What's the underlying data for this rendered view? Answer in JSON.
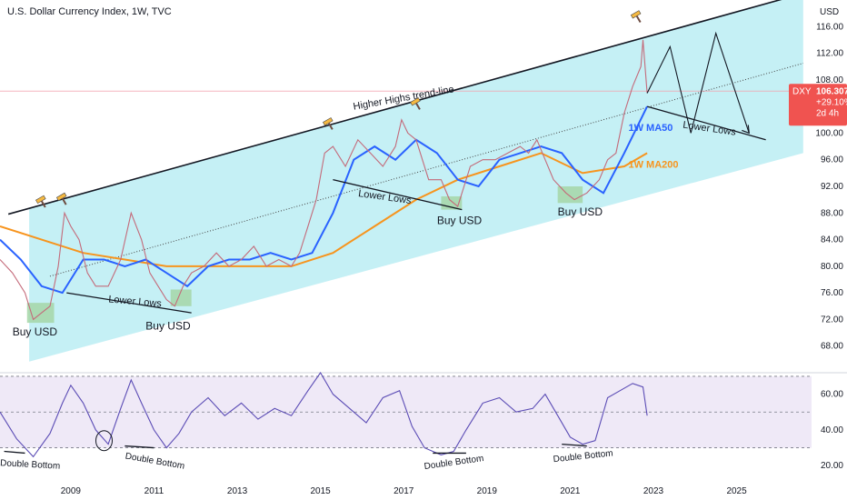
{
  "header": {
    "title": "U.S. Dollar Currency Index, 1W, TVC",
    "currency": "USD"
  },
  "badge": {
    "symbol": "DXY",
    "price": "106.307",
    "change": "+29.10%",
    "countdown": "2d 4h"
  },
  "colors": {
    "price": "#c46a7a",
    "ma50": "#2962ff",
    "ma200": "#f7941d",
    "channel": "#b2ebf2",
    "rsi_line": "#5b4cb5",
    "rsi_band": "#ede7f6",
    "buy_zone": "#a5d6a7",
    "badge": "#f05350",
    "text": "#131722"
  },
  "chart_data": [
    {
      "type": "line",
      "name": "price_panel",
      "y_range": [
        64,
        120
      ],
      "x_range": [
        2007.3,
        2026.8
      ],
      "yticks": [
        68,
        72,
        76,
        80,
        84,
        88,
        92,
        96,
        100,
        104,
        108,
        112,
        116
      ],
      "yticks_labels": [
        "68.00",
        "72.00",
        "76.00",
        "80.00",
        "84.00",
        "88.00",
        "92.00",
        "96.00",
        "100.00",
        "104.00",
        "108.00",
        "112.00",
        "116.00"
      ],
      "xticks": [
        2009,
        2011,
        2013,
        2015,
        2017,
        2019,
        2021,
        2023,
        2025
      ],
      "xticks_labels": [
        "2009",
        "2011",
        "2013",
        "2015",
        "2017",
        "2019",
        "2021",
        "2023",
        "2025"
      ],
      "series": [
        {
          "key": "price",
          "x": [
            2007.3,
            2007.6,
            2007.9,
            2008.1,
            2008.3,
            2008.5,
            2008.7,
            2008.85,
            2009.0,
            2009.2,
            2009.4,
            2009.6,
            2009.9,
            2010.2,
            2010.45,
            2010.7,
            2010.9,
            2011.1,
            2011.3,
            2011.5,
            2011.7,
            2011.9,
            2012.2,
            2012.5,
            2012.8,
            2013.1,
            2013.4,
            2013.7,
            2014.0,
            2014.3,
            2014.5,
            2014.7,
            2014.9,
            2015.1,
            2015.3,
            2015.6,
            2015.9,
            2016.2,
            2016.5,
            2016.8,
            2016.95,
            2017.1,
            2017.3,
            2017.6,
            2017.9,
            2018.1,
            2018.3,
            2018.6,
            2018.9,
            2019.2,
            2019.5,
            2019.8,
            2020.0,
            2020.2,
            2020.4,
            2020.6,
            2020.9,
            2021.1,
            2021.4,
            2021.7,
            2021.9,
            2022.1,
            2022.3,
            2022.5,
            2022.7,
            2022.75,
            2022.85
          ],
          "y": [
            81,
            79,
            76,
            72,
            73,
            74,
            80,
            88,
            86,
            84,
            79,
            77,
            77,
            81,
            88,
            84,
            79,
            77,
            75,
            74,
            77,
            79,
            80,
            82,
            80,
            81,
            83,
            80,
            81,
            80,
            82,
            86,
            90,
            97,
            98,
            95,
            99,
            97,
            95,
            98,
            102,
            100,
            99,
            93,
            93,
            90,
            89,
            95,
            96,
            96,
            97,
            98,
            97,
            99,
            96,
            93,
            91,
            90,
            91,
            93,
            96,
            97,
            103,
            107,
            110,
            114,
            106
          ]
        },
        {
          "key": "ma50",
          "x": [
            2007.3,
            2007.8,
            2008.3,
            2008.8,
            2009.3,
            2009.8,
            2010.3,
            2010.8,
            2011.3,
            2011.8,
            2012.3,
            2012.8,
            2013.3,
            2013.8,
            2014.3,
            2014.8,
            2015.3,
            2015.8,
            2016.3,
            2016.8,
            2017.3,
            2017.8,
            2018.3,
            2018.8,
            2019.3,
            2019.8,
            2020.3,
            2020.8,
            2021.3,
            2021.8,
            2022.3,
            2022.85
          ],
          "y": [
            84,
            81,
            77,
            76,
            81,
            81,
            80,
            81,
            79,
            77,
            80,
            81,
            81,
            82,
            81,
            82,
            88,
            96,
            98,
            96,
            99,
            97,
            93,
            92,
            96,
            97,
            98,
            97,
            93,
            91,
            97,
            104
          ]
        },
        {
          "key": "ma200",
          "x": [
            2007.3,
            2008.3,
            2009.3,
            2010.3,
            2011.3,
            2012.3,
            2013.3,
            2014.3,
            2015.3,
            2016.3,
            2017.3,
            2018.3,
            2019.3,
            2020.3,
            2021.3,
            2022.3,
            2022.85
          ],
          "y": [
            86,
            84,
            82,
            81,
            80,
            80,
            80,
            80,
            82,
            86,
            90,
            93,
            95,
            97,
            94,
            95,
            97
          ]
        },
        {
          "key": "projection",
          "x": [
            2022.85,
            2023.4,
            2023.9,
            2024.5,
            2025.3
          ],
          "y": [
            106,
            113,
            100,
            115,
            100
          ]
        }
      ],
      "annotations": {
        "higher_highs_label": "Higher Highs trend-line",
        "lower_lows": [
          "Lower Lows",
          "Lower Lows",
          "Lower Lows"
        ],
        "buy_usd": [
          "Buy USD",
          "Buy USD",
          "Buy USD",
          "Buy USD"
        ],
        "ma50_label": "1W MA50",
        "ma200_label": "1W MA200"
      }
    },
    {
      "type": "line",
      "name": "rsi_panel",
      "y_range": [
        14,
        72
      ],
      "yticks": [
        20,
        40,
        60
      ],
      "yticks_labels": [
        "20.00",
        "40.00",
        "60.00"
      ],
      "band": [
        30,
        70
      ],
      "midline": 50,
      "series": [
        {
          "key": "rsi",
          "x": [
            2007.3,
            2007.7,
            2008.1,
            2008.5,
            2008.8,
            2009.0,
            2009.3,
            2009.6,
            2009.9,
            2010.2,
            2010.45,
            2010.7,
            2011.0,
            2011.3,
            2011.6,
            2011.9,
            2012.3,
            2012.7,
            2013.1,
            2013.5,
            2013.9,
            2014.3,
            2014.7,
            2015.0,
            2015.3,
            2015.7,
            2016.1,
            2016.5,
            2016.9,
            2017.2,
            2017.5,
            2017.9,
            2018.2,
            2018.5,
            2018.9,
            2019.3,
            2019.7,
            2020.1,
            2020.4,
            2020.7,
            2021.0,
            2021.3,
            2021.6,
            2021.9,
            2022.2,
            2022.5,
            2022.75,
            2022.85
          ],
          "y": [
            50,
            35,
            25,
            38,
            55,
            65,
            55,
            40,
            32,
            52,
            68,
            55,
            40,
            30,
            38,
            50,
            58,
            48,
            55,
            46,
            52,
            48,
            62,
            72,
            60,
            52,
            44,
            58,
            62,
            42,
            30,
            26,
            28,
            40,
            55,
            58,
            50,
            52,
            60,
            48,
            36,
            32,
            34,
            58,
            62,
            66,
            64,
            48
          ]
        }
      ],
      "annotations": {
        "double_bottom": [
          "Double Bottom",
          "Double Bottom",
          "Double Bottom",
          "Double Bottom"
        ]
      }
    }
  ]
}
